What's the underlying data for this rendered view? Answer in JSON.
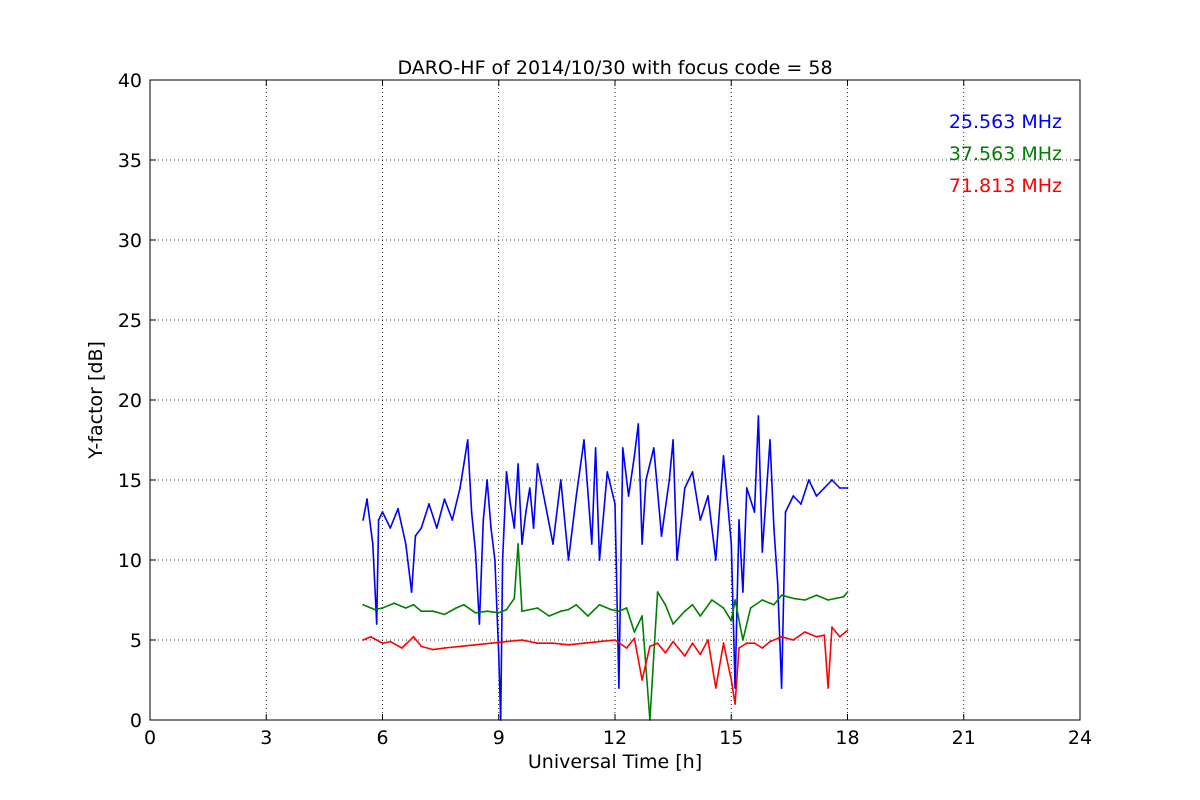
{
  "chart_data": {
    "type": "line",
    "title": "DARO-HF of 2014/10/30 with focus code = 58",
    "xlabel": "Universal Time [h]",
    "ylabel": "Y-factor [dB]",
    "xlim": [
      0,
      24
    ],
    "ylim": [
      0,
      40
    ],
    "xticks": [
      0,
      3,
      6,
      9,
      12,
      15,
      18,
      21,
      24
    ],
    "yticks": [
      0,
      5,
      10,
      15,
      20,
      25,
      30,
      35,
      40
    ],
    "grid": true,
    "legend_position": "top-right",
    "series": [
      {
        "name": "25.563 MHz",
        "color": "#0000ff",
        "x": [
          5.5,
          5.6,
          5.75,
          5.85,
          5.9,
          6.0,
          6.2,
          6.4,
          6.6,
          6.75,
          6.85,
          7.0,
          7.2,
          7.4,
          7.6,
          7.8,
          8.0,
          8.1,
          8.2,
          8.3,
          8.4,
          8.5,
          8.6,
          8.7,
          8.8,
          8.9,
          9.0,
          9.05,
          9.1,
          9.2,
          9.3,
          9.4,
          9.5,
          9.6,
          9.7,
          9.8,
          9.9,
          10.0,
          10.2,
          10.4,
          10.6,
          10.8,
          11.0,
          11.2,
          11.4,
          11.5,
          11.6,
          11.8,
          12.0,
          12.1,
          12.2,
          12.35,
          12.5,
          12.6,
          12.7,
          12.8,
          13.0,
          13.2,
          13.4,
          13.5,
          13.6,
          13.8,
          14.0,
          14.2,
          14.4,
          14.6,
          14.8,
          15.0,
          15.1,
          15.2,
          15.3,
          15.4,
          15.6,
          15.7,
          15.8,
          16.0,
          16.1,
          16.2,
          16.3,
          16.4,
          16.6,
          16.8,
          17.0,
          17.2,
          17.4,
          17.6,
          17.8,
          18.0
        ],
        "y": [
          12.5,
          13.8,
          11.0,
          6.0,
          12.5,
          13.0,
          12.0,
          13.2,
          11.0,
          8.0,
          11.5,
          12.0,
          13.5,
          12.0,
          13.8,
          12.5,
          14.5,
          16.0,
          17.5,
          13.0,
          10.5,
          6.0,
          12.5,
          15.0,
          12.0,
          10.0,
          4.0,
          0.0,
          10.0,
          15.5,
          13.5,
          12.0,
          16.0,
          11.0,
          13.0,
          14.5,
          12.0,
          16.0,
          13.5,
          11.0,
          15.0,
          10.0,
          14.0,
          17.5,
          11.0,
          17.0,
          10.0,
          15.5,
          13.5,
          2.0,
          17.0,
          14.0,
          16.5,
          18.5,
          11.0,
          15.0,
          17.0,
          11.5,
          15.0,
          17.5,
          10.0,
          14.5,
          15.5,
          12.5,
          14.0,
          10.0,
          16.5,
          11.0,
          2.0,
          12.5,
          8.0,
          14.5,
          13.0,
          19.0,
          10.5,
          17.5,
          12.0,
          8.5,
          2.0,
          13.0,
          14.0,
          13.5,
          15.0,
          14.0,
          14.5,
          15.0,
          14.5,
          14.5
        ]
      },
      {
        "name": "37.563 MHz",
        "color": "#008000",
        "x": [
          5.5,
          5.8,
          6.0,
          6.3,
          6.6,
          6.8,
          7.0,
          7.3,
          7.6,
          7.9,
          8.1,
          8.4,
          8.7,
          9.0,
          9.2,
          9.4,
          9.5,
          9.6,
          9.8,
          10.0,
          10.3,
          10.6,
          10.8,
          11.0,
          11.3,
          11.6,
          11.9,
          12.1,
          12.3,
          12.5,
          12.7,
          12.9,
          13.1,
          13.3,
          13.5,
          13.8,
          14.0,
          14.2,
          14.5,
          14.8,
          15.0,
          15.1,
          15.3,
          15.5,
          15.8,
          16.0,
          16.1,
          16.3,
          16.6,
          16.9,
          17.2,
          17.5,
          17.7,
          17.9,
          18.0
        ],
        "y": [
          7.2,
          6.9,
          7.0,
          7.3,
          7.0,
          7.2,
          6.8,
          6.8,
          6.6,
          7.0,
          7.2,
          6.7,
          6.8,
          6.7,
          6.9,
          7.6,
          11.0,
          6.8,
          6.9,
          7.0,
          6.5,
          6.8,
          6.9,
          7.2,
          6.5,
          7.2,
          6.9,
          6.8,
          7.0,
          5.5,
          6.5,
          0.0,
          8.0,
          7.2,
          6.0,
          6.8,
          7.2,
          6.5,
          7.5,
          7.0,
          6.2,
          7.5,
          5.0,
          7.0,
          7.5,
          7.3,
          7.2,
          7.8,
          7.6,
          7.5,
          7.8,
          7.5,
          7.6,
          7.7,
          8.0
        ]
      },
      {
        "name": "71.813 MHz",
        "color": "#ff0000",
        "x": [
          5.5,
          5.7,
          6.0,
          6.2,
          6.5,
          6.8,
          7.0,
          7.3,
          7.6,
          8.0,
          8.4,
          8.8,
          9.2,
          9.6,
          10.0,
          10.4,
          10.8,
          11.2,
          11.6,
          12.0,
          12.3,
          12.5,
          12.7,
          12.9,
          13.1,
          13.3,
          13.5,
          13.8,
          14.0,
          14.2,
          14.4,
          14.6,
          14.8,
          15.0,
          15.1,
          15.2,
          15.4,
          15.6,
          15.8,
          16.0,
          16.3,
          16.6,
          16.9,
          17.2,
          17.4,
          17.5,
          17.6,
          17.8,
          18.0
        ],
        "y": [
          5.0,
          5.2,
          4.8,
          4.9,
          4.5,
          5.2,
          4.6,
          4.4,
          4.5,
          4.6,
          4.7,
          4.8,
          4.9,
          5.0,
          4.8,
          4.8,
          4.7,
          4.8,
          4.9,
          5.0,
          4.5,
          5.1,
          2.5,
          4.6,
          4.8,
          4.2,
          4.9,
          4.0,
          4.8,
          4.1,
          5.0,
          2.0,
          4.8,
          2.5,
          1.0,
          4.5,
          4.8,
          4.8,
          4.5,
          4.9,
          5.2,
          5.0,
          5.5,
          5.2,
          5.3,
          2.0,
          5.8,
          5.2,
          5.6
        ]
      }
    ]
  }
}
